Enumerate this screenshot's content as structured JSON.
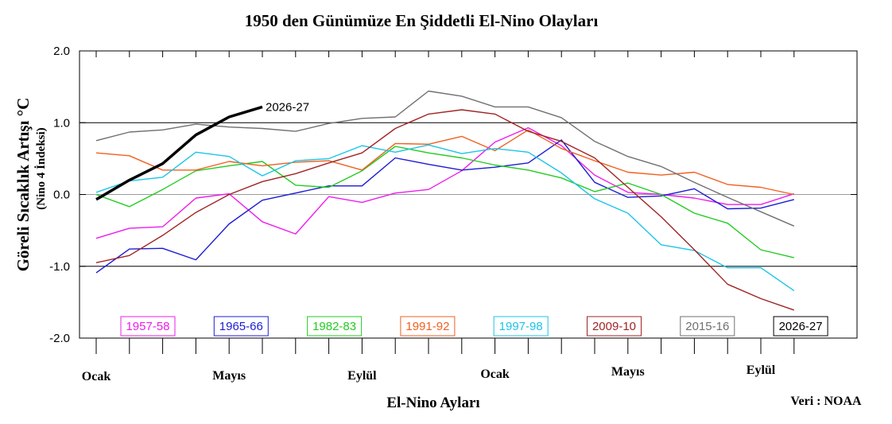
{
  "chart_data": {
    "type": "line",
    "title": "1950 den Günümüze En Şiddetli El-Nino Olayları",
    "xlabel": "El-Nino Ayları",
    "ylabel": "Göreli Sıcaklık Artışı °C",
    "ylabel_sub": "(Nino 4 İndeksi)",
    "source": "Veri : NOAA",
    "ylim": [
      -2.0,
      2.0
    ],
    "yticks": [
      "2.0",
      "1.0",
      "0.0",
      "-1.0",
      "-2.0"
    ],
    "x_tick_labels": [
      "Ocak",
      "Mayıs",
      "Eylül",
      "Ocak",
      "Mayıs",
      "Eylül"
    ],
    "x_tick_label_indices": [
      0,
      4,
      8,
      12,
      16,
      20
    ],
    "n_months": 22,
    "series": [
      {
        "name": "1957-58",
        "color": "#ee1cee",
        "width": 1.4,
        "values": [
          -0.61,
          -0.47,
          -0.45,
          -0.05,
          0.01,
          -0.38,
          -0.55,
          -0.03,
          -0.11,
          0.02,
          0.07,
          0.33,
          0.73,
          0.93,
          0.68,
          0.27,
          0.03,
          0.0,
          -0.05,
          -0.14,
          -0.14,
          0.01
        ]
      },
      {
        "name": "1965-66",
        "color": "#1c1cd4",
        "width": 1.4,
        "values": [
          -1.09,
          -0.76,
          -0.75,
          -0.91,
          -0.41,
          -0.08,
          0.02,
          0.12,
          0.12,
          0.51,
          0.42,
          0.34,
          0.38,
          0.44,
          0.76,
          0.17,
          -0.04,
          -0.02,
          0.08,
          -0.2,
          -0.19,
          -0.07
        ]
      },
      {
        "name": "1982-83",
        "color": "#22cc22",
        "width": 1.4,
        "values": [
          0.0,
          -0.17,
          0.07,
          0.33,
          0.4,
          0.46,
          0.13,
          0.1,
          0.33,
          0.67,
          0.58,
          0.51,
          0.41,
          0.34,
          0.23,
          0.04,
          0.16,
          0.0,
          -0.26,
          -0.4,
          -0.77,
          -0.88
        ]
      },
      {
        "name": "1991-92",
        "color": "#f06020",
        "width": 1.4,
        "values": [
          0.58,
          0.54,
          0.34,
          0.34,
          0.46,
          0.4,
          0.45,
          0.47,
          0.34,
          0.71,
          0.7,
          0.81,
          0.61,
          0.9,
          0.64,
          0.47,
          0.31,
          0.27,
          0.31,
          0.14,
          0.1,
          0.0
        ]
      },
      {
        "name": "1997-98",
        "color": "#1cc4e8",
        "width": 1.4,
        "values": [
          0.03,
          0.19,
          0.24,
          0.59,
          0.53,
          0.26,
          0.47,
          0.5,
          0.68,
          0.59,
          0.69,
          0.57,
          0.64,
          0.59,
          0.3,
          -0.06,
          -0.26,
          -0.7,
          -0.78,
          -1.02,
          -1.02,
          -1.34
        ]
      },
      {
        "name": "2009-10",
        "color": "#a02424",
        "width": 1.4,
        "values": [
          -0.95,
          -0.85,
          -0.57,
          -0.25,
          0.0,
          0.18,
          0.29,
          0.44,
          0.58,
          0.92,
          1.12,
          1.18,
          1.12,
          0.88,
          0.74,
          0.51,
          0.1,
          -0.31,
          -0.77,
          -1.25,
          -1.45,
          -1.61
        ]
      },
      {
        "name": "2015-16",
        "color": "#707070",
        "width": 1.4,
        "values": [
          0.75,
          0.87,
          0.9,
          0.98,
          0.94,
          0.92,
          0.88,
          0.99,
          1.06,
          1.08,
          1.44,
          1.37,
          1.22,
          1.22,
          1.07,
          0.74,
          0.53,
          0.39,
          0.17,
          -0.04,
          -0.24,
          -0.44
        ]
      },
      {
        "name": "2026-27",
        "color": "#000000",
        "width": 3.5,
        "values": [
          -0.07,
          0.2,
          0.43,
          0.83,
          1.08,
          1.22
        ]
      }
    ],
    "grid": "horizontal",
    "legend_placement": "bottom",
    "highlight_label": "2026-27"
  }
}
